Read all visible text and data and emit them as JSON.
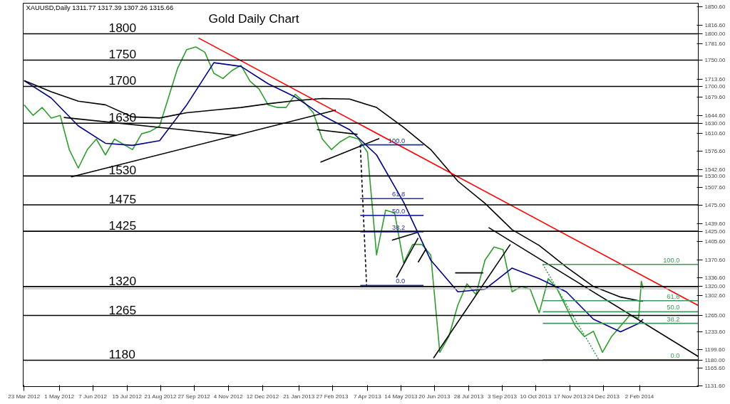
{
  "chart_data": {
    "type": "line",
    "title": "Gold Daily Chart",
    "annotations": [
      "XAUUSD,Daily 1311.77 1317.39 1307.26 1315.66"
    ],
    "xlim": [
      "2012-03-22",
      "2014-04-08"
    ],
    "xticks": [
      {
        "value": "2012-03-23",
        "label": "23 Mar 2012"
      },
      {
        "value": "2012-05-01",
        "label": "1 May 2012"
      },
      {
        "value": "2012-06-07",
        "label": "7 Jun 2012"
      },
      {
        "value": "2012-07-15",
        "label": "15 Jul 2012"
      },
      {
        "value": "2012-08-21",
        "label": "21 Aug 2012"
      },
      {
        "value": "2012-09-27",
        "label": "27 Sep 2012"
      },
      {
        "value": "2012-11-04",
        "label": "4 Nov 2012"
      },
      {
        "value": "2012-12-12",
        "label": "12 Dec 2012"
      },
      {
        "value": "2013-01-21",
        "label": "21 Jan 2013"
      },
      {
        "value": "2013-02-27",
        "label": "27 Feb 2013"
      },
      {
        "value": "2013-04-07",
        "label": "7 Apr 2013"
      },
      {
        "value": "2013-05-14",
        "label": "14 May 2013"
      },
      {
        "value": "2013-06-20",
        "label": "20 Jun 2013"
      },
      {
        "value": "2013-07-28",
        "label": "28 Jul 2013"
      },
      {
        "value": "2013-09-03",
        "label": "3 Sep 2013"
      },
      {
        "value": "2013-10-10",
        "label": "10 Oct 2013"
      },
      {
        "value": "2013-11-17",
        "label": "17 Nov 2013"
      },
      {
        "value": "2013-12-24",
        "label": "24 Dec 2013"
      },
      {
        "value": "2014-02-02",
        "label": "2 Feb 2014"
      }
    ],
    "ylim": [
      1130,
      1858
    ],
    "yticks": [
      {
        "value": 1850.6,
        "label": "1850.60"
      },
      {
        "value": 1816.6,
        "label": "1816.60"
      },
      {
        "value": 1800,
        "label": "1800.00"
      },
      {
        "value": 1781.6,
        "label": "1781.60"
      },
      {
        "value": 1750,
        "label": "1750.00"
      },
      {
        "value": 1713.6,
        "label": "1713.60"
      },
      {
        "value": 1700,
        "label": "1700.00"
      },
      {
        "value": 1679.6,
        "label": "1679.60"
      },
      {
        "value": 1644.6,
        "label": "1644.60"
      },
      {
        "value": 1630,
        "label": "1630.00"
      },
      {
        "value": 1610.6,
        "label": "1610.60"
      },
      {
        "value": 1576.6,
        "label": "1576.60"
      },
      {
        "value": 1542.6,
        "label": "1542.60"
      },
      {
        "value": 1530,
        "label": "1530.00"
      },
      {
        "value": 1507.6,
        "label": "1507.60"
      },
      {
        "value": 1475,
        "label": "1475.00"
      },
      {
        "value": 1439.6,
        "label": "1439.60"
      },
      {
        "value": 1425,
        "label": "1425.00"
      },
      {
        "value": 1405.6,
        "label": "1405.60"
      },
      {
        "value": 1370.6,
        "label": "1370.60"
      },
      {
        "value": 1336.6,
        "label": "1336.60"
      },
      {
        "value": 1320,
        "label": "1320.00"
      },
      {
        "value": 1302.6,
        "label": "1302.60"
      },
      {
        "value": 1265,
        "label": "1265.00"
      },
      {
        "value": 1233.6,
        "label": "1233.60"
      },
      {
        "value": 1199.6,
        "label": "1199.60"
      },
      {
        "value": 1180,
        "label": "1180.00"
      },
      {
        "value": 1165.6,
        "label": "1165.60"
      },
      {
        "value": 1131.6,
        "label": "1131.60"
      }
    ],
    "grid": false,
    "marker": "none",
    "ref_lines": [
      {
        "axis": "y",
        "value": 1800,
        "label": "1800",
        "color": "#000000"
      },
      {
        "axis": "y",
        "value": 1750,
        "label": "1750",
        "color": "#000000"
      },
      {
        "axis": "y",
        "value": 1700,
        "label": "1700",
        "color": "#000000"
      },
      {
        "axis": "y",
        "value": 1630,
        "label": "1630",
        "color": "#000000"
      },
      {
        "axis": "y",
        "value": 1530,
        "label": "1530",
        "color": "#000000"
      },
      {
        "axis": "y",
        "value": 1475,
        "label": "1475",
        "color": "#000000"
      },
      {
        "axis": "y",
        "value": 1425,
        "label": "1425",
        "color": "#000000"
      },
      {
        "axis": "y",
        "value": 1320,
        "label": "1320",
        "color": "#000000"
      },
      {
        "axis": "y",
        "value": 1265,
        "label": "1265",
        "color": "#000000"
      },
      {
        "axis": "y",
        "value": 1180,
        "label": "1180",
        "color": "#000000"
      },
      {
        "axis": "y",
        "value": 1315.66,
        "color": "#c0c0c0"
      }
    ],
    "series": [
      {
        "type": "line",
        "color": "#2e9e2e",
        "x": [
          "2012-03-23",
          "2012-04-02",
          "2012-04-12",
          "2012-04-22",
          "2012-05-02",
          "2012-05-12",
          "2012-05-22",
          "2012-06-01",
          "2012-06-11",
          "2012-06-21",
          "2012-07-01",
          "2012-07-11",
          "2012-07-21",
          "2012-07-31",
          "2012-08-10",
          "2012-08-20",
          "2012-08-30",
          "2012-09-09",
          "2012-09-19",
          "2012-09-29",
          "2012-10-09",
          "2012-10-19",
          "2012-10-29",
          "2012-11-08",
          "2012-11-18",
          "2012-11-28",
          "2012-12-08",
          "2012-12-18",
          "2012-12-28",
          "2013-01-07",
          "2013-01-17",
          "2013-01-27",
          "2013-02-06",
          "2013-02-16",
          "2013-02-26",
          "2013-03-08",
          "2013-03-18",
          "2013-03-28",
          "2013-04-07",
          "2013-04-17",
          "2013-04-27",
          "2013-05-07",
          "2013-05-17",
          "2013-05-27",
          "2013-06-06",
          "2013-06-16",
          "2013-06-26",
          "2013-07-06",
          "2013-07-16",
          "2013-07-26",
          "2013-08-05",
          "2013-08-15",
          "2013-08-25",
          "2013-09-04",
          "2013-09-14",
          "2013-09-24",
          "2013-10-04",
          "2013-10-14",
          "2013-10-24",
          "2013-11-03",
          "2013-11-13",
          "2013-11-23",
          "2013-12-03",
          "2013-12-13",
          "2013-12-23",
          "2014-01-02",
          "2014-01-12",
          "2014-01-22",
          "2014-02-01",
          "2014-02-04",
          "2014-02-06"
        ],
        "values": [
          1665,
          1645,
          1660,
          1640,
          1645,
          1580,
          1545,
          1580,
          1600,
          1570,
          1600,
          1590,
          1580,
          1610,
          1615,
          1625,
          1680,
          1735,
          1770,
          1775,
          1765,
          1725,
          1715,
          1730,
          1740,
          1710,
          1695,
          1665,
          1660,
          1660,
          1685,
          1670,
          1650,
          1600,
          1580,
          1595,
          1605,
          1600,
          1575,
          1380,
          1465,
          1460,
          1365,
          1400,
          1400,
          1380,
          1195,
          1225,
          1285,
          1325,
          1305,
          1370,
          1395,
          1390,
          1310,
          1320,
          1315,
          1270,
          1335,
          1315,
          1280,
          1245,
          1225,
          1235,
          1195,
          1225,
          1245,
          1265,
          1260,
          1330,
          1316
        ]
      },
      {
        "type": "line",
        "color": "#00008b",
        "x": [
          "2012-03-23",
          "2012-04-22",
          "2012-05-22",
          "2012-06-21",
          "2012-07-21",
          "2012-08-20",
          "2012-09-19",
          "2012-10-19",
          "2012-11-18",
          "2012-12-18",
          "2013-01-17",
          "2013-02-16",
          "2013-03-18",
          "2013-04-17",
          "2013-05-17",
          "2013-06-16",
          "2013-07-16",
          "2013-08-15",
          "2013-09-14",
          "2013-10-14",
          "2013-11-13",
          "2013-12-13",
          "2014-01-12",
          "2014-02-01",
          "2014-02-06"
        ],
        "values": [
          1711,
          1678,
          1625,
          1592,
          1588,
          1597,
          1665,
          1745,
          1738,
          1705,
          1680,
          1645,
          1618,
          1570,
          1480,
          1370,
          1310,
          1315,
          1355,
          1335,
          1310,
          1258,
          1234,
          1250,
          1258
        ]
      },
      {
        "type": "line",
        "color": "#000000",
        "x": [
          "2012-03-23",
          "2012-04-22",
          "2012-05-22",
          "2012-06-21",
          "2012-07-21",
          "2012-08-20",
          "2012-09-19",
          "2012-10-19",
          "2012-11-18",
          "2012-12-18",
          "2013-01-17",
          "2013-02-16",
          "2013-03-18",
          "2013-04-17",
          "2013-05-17",
          "2013-06-16",
          "2013-07-16",
          "2013-08-15",
          "2013-09-14",
          "2013-10-14",
          "2013-11-13",
          "2013-12-13",
          "2014-01-12",
          "2014-02-01",
          "2014-02-06"
        ],
        "values": [
          1711,
          1690,
          1672,
          1665,
          1642,
          1640,
          1650,
          1655,
          1660,
          1667,
          1673,
          1677,
          1676,
          1660,
          1622,
          1580,
          1520,
          1478,
          1428,
          1398,
          1357,
          1320,
          1300,
          1293,
          1292
        ]
      },
      {
        "type": "line",
        "color": "#ff0000",
        "x": [
          "2012-10-02",
          "2014-04-08"
        ],
        "values": [
          1792,
          1284
        ]
      },
      {
        "type": "line",
        "color": "#000000",
        "x": [
          "2012-05-06",
          "2012-11-13"
        ],
        "values": [
          1641,
          1607
        ]
      },
      {
        "type": "line",
        "color": "#000000",
        "x": [
          "2012-05-14",
          "2013-03-03"
        ],
        "values": [
          1528,
          1655
        ]
      },
      {
        "type": "line",
        "color": "#000000",
        "x": [
          "2013-02-10",
          "2013-03-27"
        ],
        "values": [
          1618,
          1609
        ]
      },
      {
        "type": "line",
        "color": "#000000",
        "x": [
          "2013-02-14",
          "2013-04-20"
        ],
        "values": [
          1556,
          1601
        ]
      },
      {
        "type": "line",
        "color": "#000000",
        "x": [
          "2013-05-04",
          "2013-06-02"
        ],
        "values": [
          1408,
          1423
        ]
      },
      {
        "type": "line",
        "color": "#000000",
        "x": [
          "2013-05-09",
          "2013-06-02"
        ],
        "values": [
          1337,
          1412
        ]
      },
      {
        "type": "line",
        "color": "#000000",
        "x": [
          "2013-06-02",
          "2013-06-11"
        ],
        "values": [
          1366,
          1392
        ]
      },
      {
        "type": "line",
        "color": "#000000",
        "x": [
          "2013-07-13",
          "2013-08-13"
        ],
        "values": [
          1346,
          1346
        ]
      },
      {
        "type": "line",
        "color": "#000000",
        "x": [
          "2013-06-19",
          "2013-09-12"
        ],
        "values": [
          1184,
          1400
        ]
      },
      {
        "type": "line",
        "color": "#000000",
        "x": [
          "2013-08-19",
          "2014-04-08"
        ],
        "values": [
          1432,
          1187
        ]
      },
      {
        "type": "line",
        "color": "#000000",
        "line_style": "dashed",
        "x": [
          "2013-03-30",
          "2013-04-06"
        ],
        "values": [
          1589,
          1322
        ]
      },
      {
        "type": "line",
        "name": "100.0",
        "color": "#1f2fa8",
        "x": [
          "2013-03-30",
          "2013-06-08"
        ],
        "values": [
          1589,
          1589
        ]
      },
      {
        "type": "line",
        "name": "61.8",
        "color": "#1f2fa8",
        "x": [
          "2013-03-30",
          "2013-06-08"
        ],
        "values": [
          1487,
          1487
        ]
      },
      {
        "type": "line",
        "name": "50.0",
        "color": "#1f2fa8",
        "x": [
          "2013-03-30",
          "2013-06-08"
        ],
        "values": [
          1455,
          1455
        ]
      },
      {
        "type": "line",
        "name": "38.2",
        "color": "#1f2fa8",
        "x": [
          "2013-03-30",
          "2013-06-08"
        ],
        "values": [
          1424,
          1424
        ]
      },
      {
        "type": "line",
        "name": "0.0",
        "color": "#1f2fa8",
        "x": [
          "2013-03-30",
          "2013-06-08"
        ],
        "values": [
          1322,
          1322
        ]
      },
      {
        "type": "line",
        "color": "#3c9a5c",
        "line_style": "dotted",
        "x": [
          "2013-10-18",
          "2013-12-19"
        ],
        "values": [
          1362,
          1181
        ]
      },
      {
        "type": "line",
        "name": "100.0",
        "color": "#3c9a5c",
        "x": [
          "2013-10-18",
          "2014-04-08"
        ],
        "values": [
          1362,
          1362
        ]
      },
      {
        "type": "line",
        "name": "61.8",
        "color": "#3c9a5c",
        "x": [
          "2013-10-18",
          "2014-04-08"
        ],
        "values": [
          1293,
          1293
        ]
      },
      {
        "type": "line",
        "name": "50.0",
        "color": "#3c9a5c",
        "x": [
          "2013-10-18",
          "2014-04-08"
        ],
        "values": [
          1272,
          1272
        ]
      },
      {
        "type": "line",
        "name": "38.2",
        "color": "#3c9a5c",
        "x": [
          "2013-10-18",
          "2014-04-08"
        ],
        "values": [
          1250,
          1250
        ]
      },
      {
        "type": "line",
        "name": "0.0",
        "color": "#3c9a5c",
        "x": [
          "2013-10-18",
          "2014-04-08"
        ],
        "values": [
          1181,
          1181
        ]
      }
    ]
  }
}
